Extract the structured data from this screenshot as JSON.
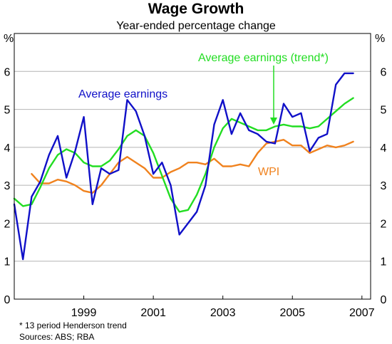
{
  "chart_data": {
    "type": "line",
    "title": "Wage Growth",
    "subtitle": "Year-ended percentage change",
    "y_unit_left": "%",
    "y_unit_right": "%",
    "ylim": [
      0,
      7
    ],
    "yticks": [
      0,
      1,
      2,
      3,
      4,
      5,
      6
    ],
    "xlim": [
      1997.5,
      2007.75
    ],
    "xticks": [
      {
        "label": "1999",
        "value": 1999.5
      },
      {
        "label": "2001",
        "value": 2001.5
      },
      {
        "label": "2003",
        "value": 2003.5
      },
      {
        "label": "2005",
        "value": 2005.5
      },
      {
        "label": "2007",
        "value": 2007.5
      }
    ],
    "grid": true,
    "series": [
      {
        "name": "Average earnings",
        "color": "#1010c8",
        "x": [
          1997.5,
          1997.75,
          1998,
          1998.25,
          1998.5,
          1998.75,
          1999,
          1999.25,
          1999.5,
          1999.75,
          2000,
          2000.25,
          2000.5,
          2000.75,
          2001,
          2001.25,
          2001.5,
          2001.75,
          2002,
          2002.25,
          2002.5,
          2002.75,
          2003,
          2003.25,
          2003.5,
          2003.75,
          2004,
          2004.25,
          2004.5,
          2004.75,
          2005,
          2005.25,
          2005.5,
          2005.75,
          2006,
          2006.25,
          2006.5,
          2006.75,
          2007,
          2007.25
        ],
        "y": [
          2.5,
          1.05,
          2.7,
          3.1,
          3.8,
          4.3,
          3.2,
          3.9,
          4.8,
          2.5,
          3.45,
          3.3,
          3.4,
          5.25,
          4.95,
          4.3,
          3.3,
          3.6,
          3.0,
          1.7,
          2.0,
          2.3,
          3.0,
          4.6,
          5.25,
          4.35,
          4.9,
          4.45,
          4.35,
          4.15,
          4.1,
          5.15,
          4.8,
          4.9,
          3.9,
          4.25,
          4.35,
          5.65,
          5.95,
          5.95
        ]
      },
      {
        "name": "Average earnings (trend*)",
        "color": "#22dd22",
        "x": [
          1997.5,
          1997.75,
          1998,
          1998.25,
          1998.5,
          1998.75,
          1999,
          1999.25,
          1999.5,
          1999.75,
          2000,
          2000.25,
          2000.5,
          2000.75,
          2001,
          2001.25,
          2001.5,
          2001.75,
          2002,
          2002.25,
          2002.5,
          2002.75,
          2003,
          2003.25,
          2003.5,
          2003.75,
          2004,
          2004.25,
          2004.5,
          2004.75,
          2005,
          2005.25,
          2005.5,
          2005.75,
          2006,
          2006.25,
          2006.5,
          2006.75,
          2007,
          2007.25
        ],
        "y": [
          2.65,
          2.45,
          2.5,
          2.95,
          3.45,
          3.8,
          3.95,
          3.85,
          3.6,
          3.5,
          3.5,
          3.65,
          3.95,
          4.3,
          4.45,
          4.3,
          3.85,
          3.25,
          2.65,
          2.3,
          2.35,
          2.75,
          3.3,
          4.0,
          4.5,
          4.75,
          4.65,
          4.55,
          4.45,
          4.45,
          4.55,
          4.6,
          4.55,
          4.55,
          4.5,
          4.55,
          4.75,
          4.95,
          5.15,
          5.3
        ]
      },
      {
        "name": "WPI",
        "color": "#f0821e",
        "x": [
          1998.0,
          1998.25,
          1998.5,
          1998.75,
          1999,
          1999.25,
          1999.5,
          1999.75,
          2000,
          2000.25,
          2000.5,
          2000.75,
          2001,
          2001.25,
          2001.5,
          2001.75,
          2002,
          2002.25,
          2002.5,
          2002.75,
          2003,
          2003.25,
          2003.5,
          2003.75,
          2004,
          2004.25,
          2004.5,
          2004.75,
          2005,
          2005.25,
          2005.5,
          2005.75,
          2006,
          2006.25,
          2006.5,
          2006.75,
          2007,
          2007.25
        ],
        "y": [
          3.3,
          3.05,
          3.05,
          3.15,
          3.1,
          3.0,
          2.85,
          2.8,
          3.0,
          3.3,
          3.6,
          3.75,
          3.6,
          3.45,
          3.2,
          3.2,
          3.35,
          3.45,
          3.6,
          3.6,
          3.55,
          3.7,
          3.5,
          3.5,
          3.55,
          3.5,
          3.85,
          4.1,
          4.15,
          4.2,
          4.05,
          4.05,
          3.85,
          3.95,
          4.05,
          4.0,
          4.05,
          4.15
        ]
      }
    ],
    "annotations": [
      {
        "text": "Average earnings",
        "series": 0
      },
      {
        "text": "Average earnings (trend*)",
        "series": 1
      },
      {
        "text": "WPI",
        "series": 2
      }
    ],
    "footnote": "* 13 period Henderson trend",
    "sources": "Sources: ABS; RBA"
  }
}
